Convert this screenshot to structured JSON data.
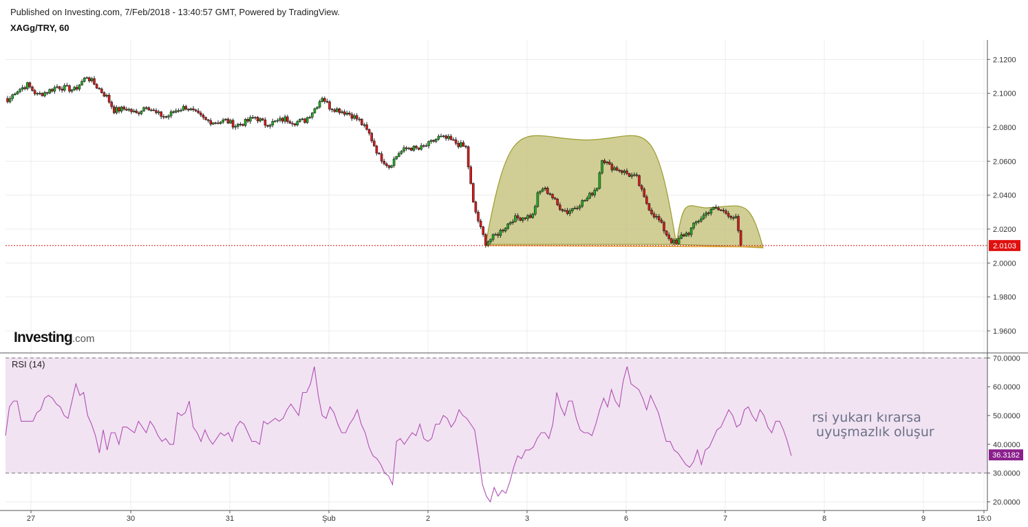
{
  "header": {
    "published": "Published on Investing.com, 7/Feb/2018 - 13:40:57 GMT, Powered by TradingView.",
    "symbol": "XAGg/TRY, 60"
  },
  "logo": {
    "main": "Investing",
    "suffix": ".com"
  },
  "colors": {
    "up_candle": "#22b022",
    "down_candle": "#dd1a1a",
    "pattern_fill": "#c8c682",
    "pattern_stroke": "#9a9a2c",
    "rsi_line": "#b04fb3",
    "rsi_band": "#f1e3f2",
    "price_line": "#d11010"
  },
  "chart_data": [
    {
      "type": "candlestick",
      "title": "XAGg/TRY, 60",
      "x_ticks": [
        "27",
        "30",
        "31",
        "Şub",
        "2",
        "3",
        "6",
        "7",
        "8",
        "9",
        "15:0"
      ],
      "y_ticks": [
        "2.1200",
        "2.1000",
        "2.0800",
        "2.0600",
        "2.0400",
        "2.0200",
        "2.0000",
        "1.9800",
        "1.9600"
      ],
      "ylim": [
        1.947,
        2.1315
      ],
      "last_price": {
        "value": 2.0103,
        "label": "2.0103"
      },
      "close_path": [
        [
          0,
          2.095
        ],
        [
          3,
          2.101
        ],
        [
          8,
          2.105
        ],
        [
          12,
          2.099
        ],
        [
          16,
          2.101
        ],
        [
          20,
          2.104
        ],
        [
          27,
          2.102
        ],
        [
          32,
          2.11
        ],
        [
          36,
          2.104
        ],
        [
          40,
          2.098
        ],
        [
          43,
          2.09
        ],
        [
          48,
          2.091
        ],
        [
          52,
          2.088
        ],
        [
          56,
          2.093
        ],
        [
          60,
          2.088
        ],
        [
          64,
          2.086
        ],
        [
          68,
          2.09
        ],
        [
          72,
          2.092
        ],
        [
          76,
          2.088
        ],
        [
          80,
          2.084
        ],
        [
          84,
          2.083
        ],
        [
          88,
          2.084
        ],
        [
          92,
          2.081
        ],
        [
          96,
          2.083
        ],
        [
          100,
          2.086
        ],
        [
          104,
          2.082
        ],
        [
          108,
          2.083
        ],
        [
          112,
          2.085
        ],
        [
          116,
          2.083
        ],
        [
          120,
          2.084
        ],
        [
          124,
          2.091
        ],
        [
          127,
          2.098
        ],
        [
          130,
          2.092
        ],
        [
          134,
          2.09
        ],
        [
          138,
          2.088
        ],
        [
          142,
          2.084
        ],
        [
          146,
          2.076
        ],
        [
          150,
          2.063
        ],
        [
          154,
          2.057
        ],
        [
          158,
          2.065
        ],
        [
          162,
          2.068
        ],
        [
          166,
          2.067
        ],
        [
          170,
          2.07
        ],
        [
          174,
          2.074
        ],
        [
          178,
          2.073
        ],
        [
          182,
          2.07
        ],
        [
          185,
          2.068
        ],
        [
          188,
          2.035
        ],
        [
          191,
          2.02
        ],
        [
          193,
          2.012
        ],
        [
          196,
          2.015
        ],
        [
          200,
          2.02
        ],
        [
          204,
          2.026
        ],
        [
          208,
          2.027
        ],
        [
          212,
          2.028
        ],
        [
          214,
          2.04
        ],
        [
          216,
          2.044
        ],
        [
          219,
          2.041
        ],
        [
          222,
          2.034
        ],
        [
          226,
          2.03
        ],
        [
          230,
          2.034
        ],
        [
          234,
          2.038
        ],
        [
          238,
          2.045
        ],
        [
          240,
          2.062
        ],
        [
          243,
          2.057
        ],
        [
          247,
          2.055
        ],
        [
          251,
          2.052
        ],
        [
          254,
          2.05
        ],
        [
          257,
          2.038
        ],
        [
          260,
          2.03
        ],
        [
          263,
          2.025
        ],
        [
          266,
          2.017
        ],
        [
          268,
          2.013
        ],
        [
          270,
          2.011
        ],
        [
          272,
          2.016
        ],
        [
          275,
          2.018
        ],
        [
          278,
          2.024
        ],
        [
          281,
          2.028
        ],
        [
          284,
          2.032
        ],
        [
          288,
          2.031
        ],
        [
          291,
          2.029
        ],
        [
          294,
          2.026
        ],
        [
          296,
          2.0103
        ]
      ],
      "pattern": {
        "shape": "cup-and-handle",
        "head": {
          "start": [
            193,
            2.011
          ],
          "peak": [
            234,
            2.0725
          ],
          "end": [
            270,
            2.011
          ]
        },
        "handle": {
          "start": [
            270,
            2.011
          ],
          "peak": [
            282,
            2.0325
          ],
          "end": [
            305,
            2.009
          ]
        },
        "neckline": 2.0103
      }
    },
    {
      "type": "line",
      "title": "RSI (14)",
      "series": [
        {
          "name": "RSI (14)"
        }
      ],
      "y_ticks": [
        "70.0000",
        "60.0000",
        "50.0000",
        "40.0000",
        "30.0000",
        "20.0000"
      ],
      "ylim": [
        17,
        71.5
      ],
      "band": [
        30,
        70
      ],
      "last_value": {
        "value": 36.3182,
        "label": "36.3182"
      },
      "values": [
        43,
        53,
        55,
        55,
        48,
        48,
        48,
        48,
        51,
        52,
        56,
        57,
        56,
        54,
        53,
        50,
        49,
        55,
        61,
        57,
        58,
        50,
        47,
        43,
        37,
        45,
        38,
        44,
        44,
        40,
        46,
        46,
        45,
        44,
        48,
        46,
        44,
        48,
        46,
        43,
        41,
        42,
        40,
        40,
        51,
        50,
        51,
        55,
        46,
        44,
        41,
        45,
        42,
        40,
        42,
        44,
        43,
        44,
        41,
        46,
        48,
        47,
        44,
        41,
        41,
        40,
        48,
        47,
        48,
        49,
        48,
        49,
        52,
        54,
        52,
        50,
        58,
        58,
        61,
        67,
        57,
        50,
        49,
        53,
        51,
        47,
        44,
        44,
        47,
        49,
        52,
        47,
        44,
        39,
        36,
        35,
        33,
        30,
        29,
        26,
        41,
        42,
        40,
        42,
        44,
        43,
        47,
        42,
        41,
        42,
        47,
        47,
        50,
        49,
        46,
        48,
        52,
        50,
        49,
        47,
        45,
        36,
        26,
        22,
        20,
        25,
        22,
        24,
        23,
        27,
        32,
        36,
        35,
        38,
        38,
        39,
        42,
        44,
        44,
        42,
        47,
        58,
        53,
        50,
        55,
        55,
        49,
        45,
        44,
        44,
        43,
        47,
        52,
        56,
        53,
        59,
        55,
        53,
        62,
        67,
        61,
        60,
        59,
        56,
        52,
        57,
        54,
        51,
        46,
        41,
        41,
        38,
        37,
        35,
        33,
        32,
        34,
        38,
        33,
        38,
        39,
        42,
        45,
        46,
        49,
        52,
        50,
        46,
        47,
        52,
        53,
        50,
        48,
        52,
        50,
        46,
        44,
        48,
        48,
        45,
        41,
        36
      ]
    }
  ],
  "note": {
    "line1": "rsi yukarı kırarsa",
    "line2": " uyuşmazlık oluşur"
  }
}
